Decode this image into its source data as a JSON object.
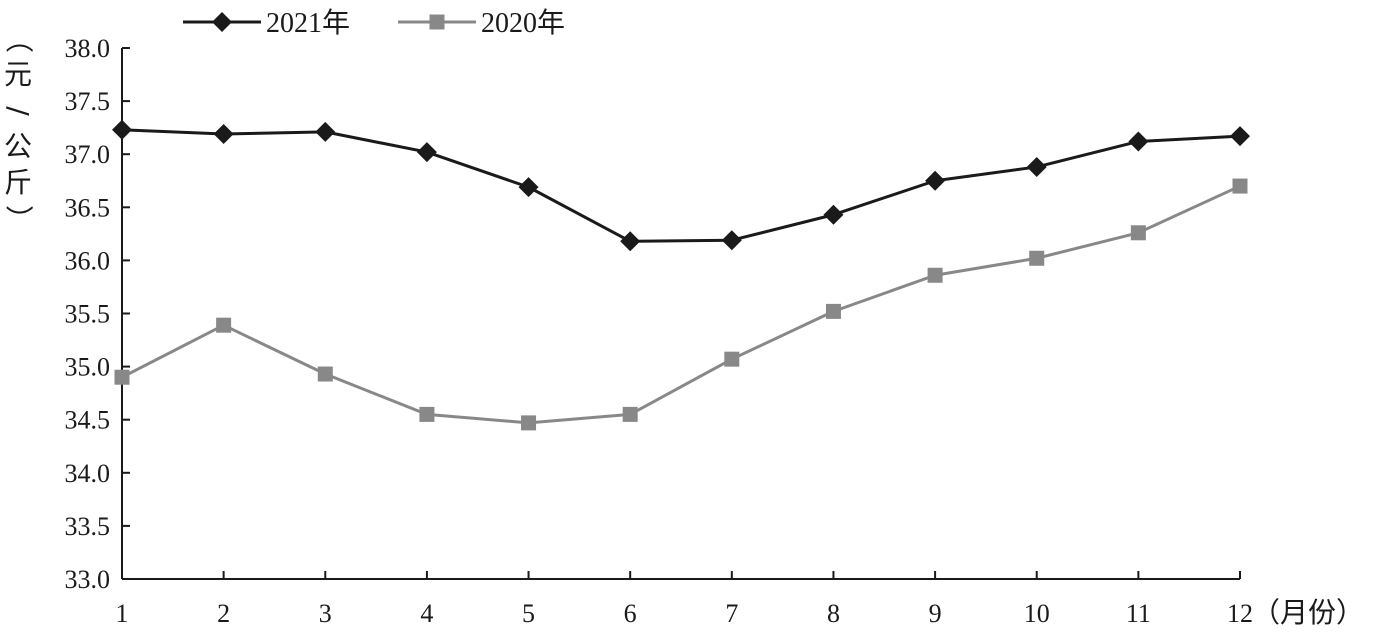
{
  "chart_data": {
    "type": "line",
    "x": [
      1,
      2,
      3,
      4,
      5,
      6,
      7,
      8,
      9,
      10,
      11,
      12
    ],
    "x_unit": "（月份）",
    "y_unit": "（元/公斤）",
    "ylim": [
      33.0,
      38.0
    ],
    "yticks": [
      "33.0",
      "33.5",
      "34.0",
      "34.5",
      "35.0",
      "35.5",
      "36.0",
      "36.5",
      "37.0",
      "37.5",
      "38.0"
    ],
    "grid": false,
    "legend_position": "top",
    "series": [
      {
        "name": "2021年",
        "color": "#1a1a1a",
        "marker": "diamond",
        "values": [
          37.23,
          37.19,
          37.21,
          37.02,
          36.69,
          36.18,
          36.19,
          36.43,
          36.75,
          36.88,
          37.12,
          37.17
        ]
      },
      {
        "name": "2020年",
        "color": "#888888",
        "marker": "square",
        "values": [
          34.9,
          35.39,
          34.93,
          34.55,
          34.47,
          34.55,
          35.07,
          35.52,
          35.86,
          36.02,
          36.26,
          36.7
        ]
      }
    ]
  }
}
